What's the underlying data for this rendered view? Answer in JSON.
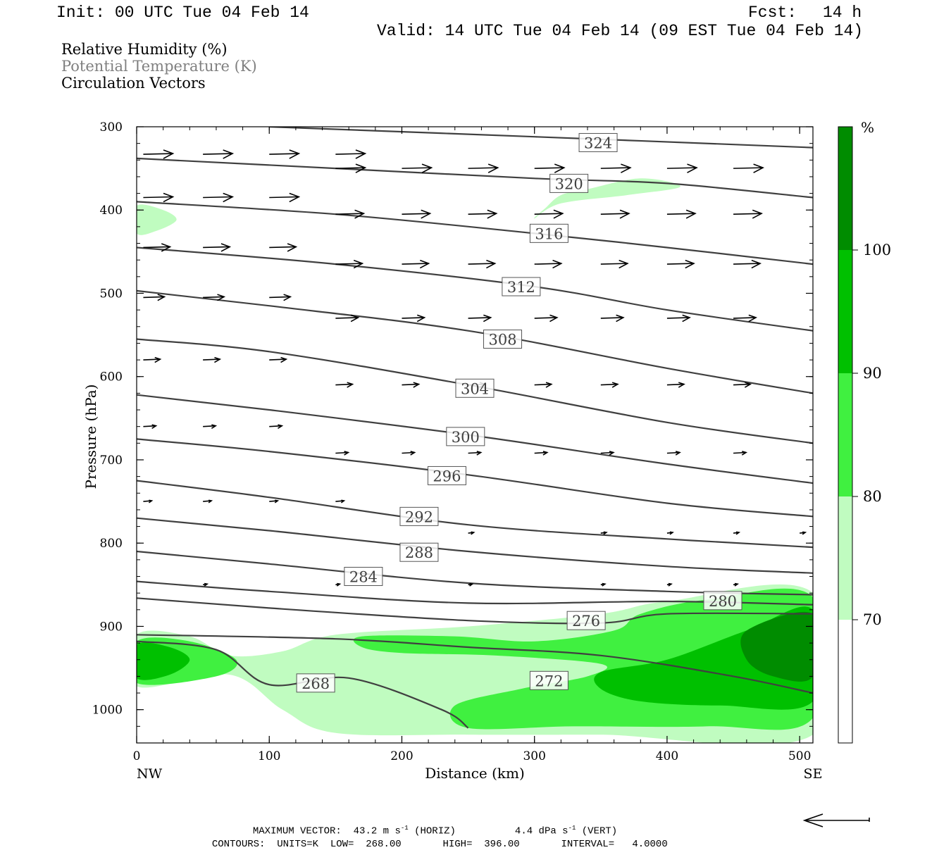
{
  "header": {
    "init": "Init: 00 UTC Tue 04 Feb 14",
    "fcst_label": "Fcst:",
    "fcst_value": "14 h",
    "valid": "Valid: 14 UTC Tue 04 Feb 14 (09 EST Tue 04 Feb 14)"
  },
  "fields": {
    "rh": "Relative Humidity (%)",
    "theta": "Potential Temperature (K)",
    "vectors": "Circulation Vectors"
  },
  "colors": {
    "rh_70": "#c0fcc0",
    "rh_80": "#40f040",
    "rh_90": "#00c000",
    "rh_100": "#008c00",
    "contour": "#404040",
    "vector": "#000000"
  },
  "chart_data": {
    "type": "cross-section",
    "xlabel": "Distance (km)",
    "ylabel": "Pressure (hPa)",
    "xlim": [
      0,
      510
    ],
    "ylim": [
      300,
      1040
    ],
    "y_reversed": true,
    "x_ticks": [
      0,
      100,
      200,
      300,
      400,
      500
    ],
    "y_ticks": [
      300,
      400,
      500,
      600,
      700,
      800,
      900,
      1000
    ],
    "endpoint_left": "NW",
    "endpoint_right": "SE",
    "colorbar": {
      "unit": "%",
      "levels": [
        70,
        80,
        90,
        100
      ],
      "colors": [
        "#ffffff",
        "#c0fcc0",
        "#40f040",
        "#00c000",
        "#008c00"
      ]
    },
    "theta_contours": [
      {
        "label": "324",
        "label_at": [
          348,
          319
        ],
        "points": [
          [
            100,
            300
          ],
          [
            300,
            312
          ],
          [
            510,
            325
          ]
        ]
      },
      {
        "label": "320",
        "label_at": [
          326,
          368
        ],
        "points": [
          [
            0,
            338
          ],
          [
            150,
            350
          ],
          [
            300,
            362
          ],
          [
            400,
            368
          ],
          [
            510,
            385
          ]
        ]
      },
      {
        "label": "316",
        "label_at": [
          311,
          428
        ],
        "points": [
          [
            0,
            390
          ],
          [
            150,
            405
          ],
          [
            300,
            428
          ],
          [
            400,
            445
          ],
          [
            510,
            465
          ]
        ]
      },
      {
        "label": "312",
        "label_at": [
          290,
          492
        ],
        "points": [
          [
            0,
            445
          ],
          [
            150,
            465
          ],
          [
            300,
            492
          ],
          [
            400,
            520
          ],
          [
            510,
            545
          ]
        ]
      },
      {
        "label": "308",
        "label_at": [
          276,
          555
        ],
        "points": [
          [
            0,
            497
          ],
          [
            100,
            515
          ],
          [
            250,
            545
          ],
          [
            400,
            590
          ],
          [
            510,
            620
          ]
        ]
      },
      {
        "label": "304",
        "label_at": [
          255,
          614
        ],
        "points": [
          [
            0,
            555
          ],
          [
            100,
            570
          ],
          [
            250,
            610
          ],
          [
            400,
            655
          ],
          [
            510,
            680
          ]
        ]
      },
      {
        "label": "300",
        "label_at": [
          248,
          672
        ],
        "points": [
          [
            0,
            622
          ],
          [
            100,
            640
          ],
          [
            250,
            670
          ],
          [
            400,
            705
          ],
          [
            510,
            728
          ]
        ]
      },
      {
        "label": "296",
        "label_at": [
          234,
          719
        ],
        "points": [
          [
            0,
            675
          ],
          [
            100,
            690
          ],
          [
            250,
            718
          ],
          [
            400,
            752
          ],
          [
            510,
            768
          ]
        ]
      },
      {
        "label": "292",
        "label_at": [
          213,
          768
        ],
        "points": [
          [
            0,
            725
          ],
          [
            100,
            745
          ],
          [
            250,
            778
          ],
          [
            400,
            795
          ],
          [
            510,
            805
          ]
        ]
      },
      {
        "label": "288",
        "label_at": [
          213,
          811
        ],
        "points": [
          [
            0,
            770
          ],
          [
            100,
            785
          ],
          [
            250,
            810
          ],
          [
            400,
            828
          ],
          [
            510,
            836
          ]
        ]
      },
      {
        "label": "284",
        "label_at": [
          171,
          840
        ],
        "points": [
          [
            0,
            810
          ],
          [
            100,
            825
          ],
          [
            250,
            848
          ],
          [
            400,
            858
          ],
          [
            510,
            862
          ]
        ]
      },
      {
        "label": "280",
        "label_at": [
          442,
          869
        ],
        "points": [
          [
            0,
            846
          ],
          [
            100,
            858
          ],
          [
            250,
            872
          ],
          [
            400,
            870
          ],
          [
            510,
            874
          ]
        ]
      },
      {
        "label": "276",
        "label_at": [
          339,
          893
        ],
        "points": [
          [
            0,
            866
          ],
          [
            100,
            878
          ],
          [
            250,
            893
          ],
          [
            350,
            896
          ],
          [
            400,
            885
          ],
          [
            510,
            885
          ]
        ]
      },
      {
        "label": "272",
        "label_at": [
          311,
          965
        ],
        "points": [
          [
            0,
            910
          ],
          [
            150,
            915
          ],
          [
            250,
            925
          ],
          [
            350,
            935
          ],
          [
            450,
            960
          ],
          [
            510,
            980
          ]
        ]
      },
      {
        "label": "268",
        "label_at": [
          135,
          968
        ],
        "points": [
          [
            0,
            918
          ],
          [
            60,
            928
          ],
          [
            100,
            970
          ],
          [
            160,
            962
          ],
          [
            230,
            1000
          ],
          [
            250,
            1022
          ]
        ]
      }
    ],
    "rh_regions": [
      {
        "level": 70,
        "points": [
          [
            0,
            910
          ],
          [
            40,
            912
          ],
          [
            70,
            935
          ],
          [
            110,
            930
          ],
          [
            150,
            910
          ],
          [
            250,
            900
          ],
          [
            350,
            885
          ],
          [
            400,
            870
          ],
          [
            510,
            860
          ],
          [
            510,
            1030
          ],
          [
            350,
            1030
          ],
          [
            250,
            1030
          ],
          [
            150,
            1028
          ],
          [
            110,
            1000
          ],
          [
            70,
            958
          ],
          [
            0,
            972
          ]
        ]
      },
      {
        "level": 70,
        "points": [
          [
            340,
            375
          ],
          [
            380,
            362
          ],
          [
            410,
            372
          ],
          [
            370,
            382
          ],
          [
            320,
            392
          ],
          [
            300,
            410
          ],
          [
            308,
            398
          ],
          [
            320,
            382
          ]
        ]
      },
      {
        "level": 70,
        "points": [
          [
            0,
            395
          ],
          [
            20,
            400
          ],
          [
            30,
            412
          ],
          [
            15,
            425
          ],
          [
            0,
            428
          ]
        ]
      },
      {
        "level": 80,
        "points": [
          [
            0,
            918
          ],
          [
            40,
            918
          ],
          [
            75,
            940
          ],
          [
            60,
            960
          ],
          [
            0,
            968
          ]
        ]
      },
      {
        "level": 80,
        "points": [
          [
            170,
            912
          ],
          [
            240,
            912
          ],
          [
            300,
            918
          ],
          [
            360,
            905
          ],
          [
            380,
            885
          ],
          [
            430,
            868
          ],
          [
            510,
            865
          ],
          [
            510,
            1010
          ],
          [
            430,
            1020
          ],
          [
            330,
            1020
          ],
          [
            250,
            1022
          ],
          [
            240,
            995
          ],
          [
            290,
            975
          ],
          [
            340,
            960
          ],
          [
            350,
            945
          ],
          [
            270,
            935
          ],
          [
            200,
            932
          ],
          [
            170,
            925
          ]
        ]
      },
      {
        "level": 90,
        "points": [
          [
            0,
            922
          ],
          [
            25,
            925
          ],
          [
            40,
            940
          ],
          [
            25,
            958
          ],
          [
            0,
            962
          ]
        ]
      },
      {
        "level": 90,
        "points": [
          [
            350,
            955
          ],
          [
            400,
            940
          ],
          [
            460,
            905
          ],
          [
            510,
            880
          ],
          [
            510,
            990
          ],
          [
            440,
            995
          ],
          [
            380,
            990
          ],
          [
            350,
            975
          ]
        ]
      },
      {
        "level": 100,
        "points": [
          [
            460,
            905
          ],
          [
            510,
            885
          ],
          [
            510,
            960
          ],
          [
            480,
            960
          ],
          [
            460,
            940
          ]
        ]
      }
    ],
    "vectors": {
      "max_horiz": "43.2",
      "max_vert": "4.4",
      "rows": [
        {
          "p": 333,
          "x": [
            5,
            50,
            100,
            150
          ],
          "len": 42
        },
        {
          "p": 350,
          "x": [
            150,
            200,
            250,
            300,
            350,
            400,
            450
          ],
          "len": 42
        },
        {
          "p": 385,
          "x": [
            5,
            50,
            100
          ],
          "len": 42
        },
        {
          "p": 405,
          "x": [
            150,
            200,
            250,
            300,
            350,
            400,
            450
          ],
          "len": 40
        },
        {
          "p": 445,
          "x": [
            5,
            50,
            100
          ],
          "len": 38
        },
        {
          "p": 465,
          "x": [
            150,
            200,
            250,
            300,
            350,
            400,
            450
          ],
          "len": 38
        },
        {
          "p": 505,
          "x": [
            5,
            50,
            100
          ],
          "len": 30
        },
        {
          "p": 530,
          "x": [
            150,
            200,
            250,
            300,
            350,
            400,
            450
          ],
          "len": 32
        },
        {
          "p": 580,
          "x": [
            5,
            50,
            100
          ],
          "len": 24
        },
        {
          "p": 610,
          "x": [
            150,
            200,
            250,
            300,
            350,
            400,
            450
          ],
          "len": 24
        },
        {
          "p": 660,
          "x": [
            5,
            50,
            100
          ],
          "len": 18
        },
        {
          "p": 692,
          "x": [
            150,
            200,
            250,
            300,
            350,
            400,
            450
          ],
          "len": 18
        },
        {
          "p": 750,
          "x": [
            5,
            50,
            100,
            150
          ],
          "len": 12
        },
        {
          "p": 788,
          "x": [
            250,
            350,
            400,
            450,
            500
          ],
          "len": 8
        },
        {
          "p": 850,
          "x": [
            50,
            150,
            250,
            350,
            400,
            450
          ],
          "len": 6
        }
      ]
    }
  },
  "footer": {
    "line1_label": "MAXIMUM VECTOR:",
    "line1_horiz_val": "43.2",
    "line1_horiz_unit": "(HORIZ)",
    "line1_vert_val": "4.4",
    "line1_vert_unit": "(VERT)",
    "line2_contours": "CONTOURS:  UNITS=K  LOW=  268.00",
    "line2_high": "HIGH=  396.00",
    "line2_interval": "INTERVAL=   4.0000"
  }
}
